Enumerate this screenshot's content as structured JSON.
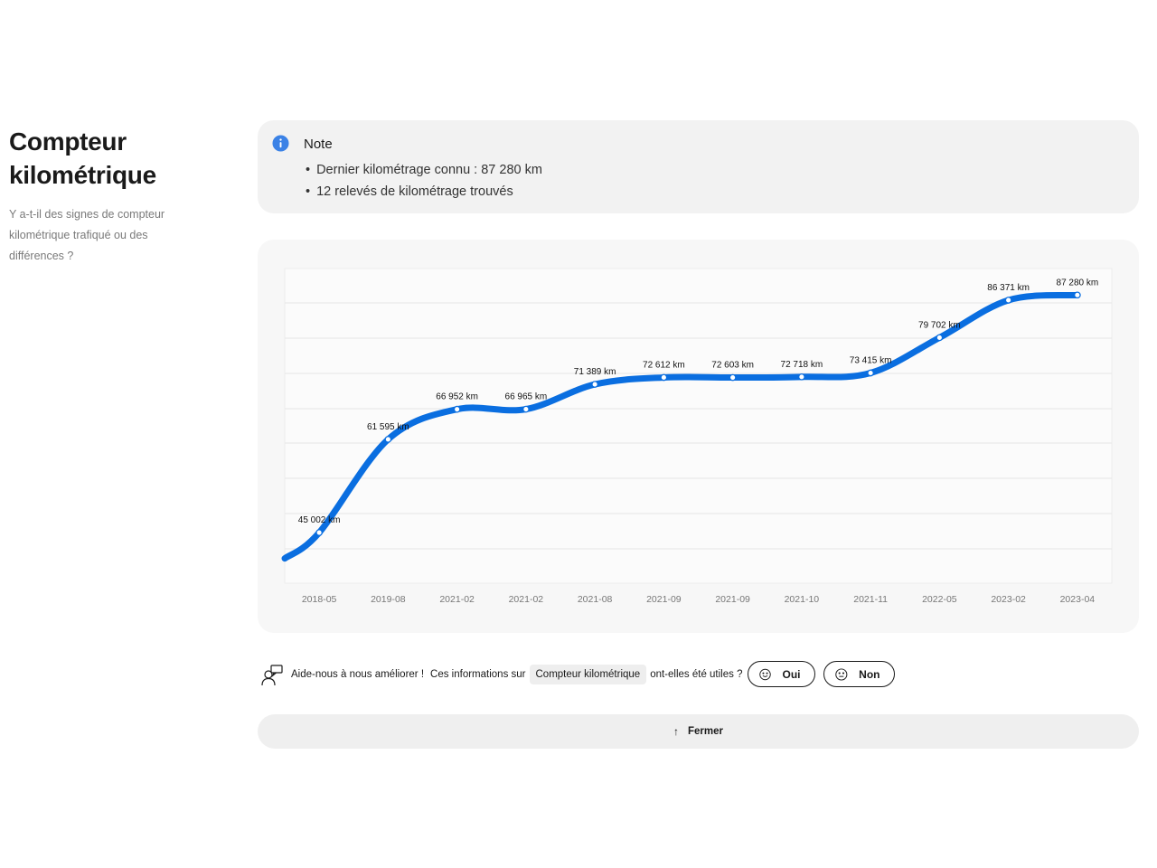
{
  "header": {
    "title_line1": "Compteur",
    "title_line2": "kilométrique",
    "subtitle_line1": "Y a-t-il des signes de compteur",
    "subtitle_line2": "kilométrique trafiqué ou des",
    "subtitle_line3": "différences ?"
  },
  "note": {
    "icon": "info-icon",
    "title": "Note",
    "items": [
      "Dernier kilométrage connu : 87 280 km",
      "12 relevés de kilométrage trouvés"
    ]
  },
  "colors": {
    "line": "#0a6ee0",
    "card": "#f2f2f2",
    "chart_bg": "#f7f7f7",
    "grid": "#e6e6e6"
  },
  "chart_data": {
    "type": "line",
    "categories": [
      "2018-05",
      "2019-08",
      "2021-02",
      "2021-02",
      "2021-08",
      "2021-09",
      "2021-09",
      "2021-10",
      "2021-11",
      "2022-05",
      "2023-02",
      "2023-04"
    ],
    "values": [
      45002,
      61595,
      66952,
      66965,
      71389,
      72612,
      72603,
      72718,
      73415,
      79702,
      86371,
      87280
    ],
    "data_labels": [
      "45 002 km",
      "61 595 km",
      "66 952 km",
      "66 965 km",
      "71 389 km",
      "72 612 km",
      "72 603 km",
      "72 718 km",
      "73 415 km",
      "79 702 km",
      "86 371 km",
      "87 280 km"
    ],
    "title": "",
    "xlabel": "",
    "ylabel": "",
    "ylim": [
      36000,
      92000
    ],
    "grid": true,
    "legend": "none"
  },
  "feedback": {
    "icon": "feedback-person-icon",
    "help_text": "Aide-nous à nous améliorer !",
    "pre_text": "Ces informations sur",
    "chip_text": "Compteur kilométrique",
    "post_text": "ont-elles été utiles ?",
    "yes_label": "Oui",
    "yes_icon": "smile-icon",
    "no_label": "Non",
    "no_icon": "neutral-face-icon"
  },
  "close": {
    "label": "Fermer",
    "icon": "arrow-up-icon"
  }
}
